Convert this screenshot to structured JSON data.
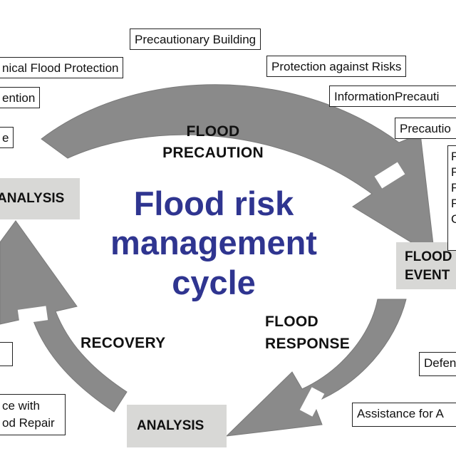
{
  "title": {
    "line1": "Flood risk",
    "line2": "management",
    "line3": "cycle"
  },
  "phases": {
    "precaution_line1": "FLOOD",
    "precaution_line2": "PRECAUTION",
    "response_line1": "FLOOD",
    "response_line2": "RESPONSE",
    "recovery": "RECOVERY"
  },
  "grey_boxes": {
    "analysis_left": "ANALYSIS",
    "analysis_bottom": "ANALYSIS",
    "flood_event_line1": "FLOOD",
    "flood_event_line2": "EVENT"
  },
  "label_boxes": {
    "precautionary_building": "Precautionary Building",
    "technical_flood_protection": "nical Flood Protection",
    "retention": "ention",
    "left_partial": "e",
    "protection_against_risks": "Protection against Risks",
    "information_precaution": "InformationPrecauti",
    "precaution_right": "Precautio",
    "right_list": [
      "F",
      "F",
      "F",
      "F",
      "C"
    ],
    "defense": "Defen",
    "assistance": "Assistance for A",
    "left_small": "",
    "insurance_line1": "ce with",
    "insurance_line2": "od Repair"
  },
  "colors": {
    "arrow": "#8a8a8a",
    "title": "#2f3590",
    "grey_box": "#d8d8d6"
  }
}
